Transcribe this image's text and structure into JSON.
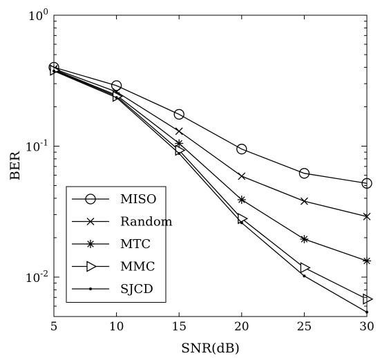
{
  "chart_data": {
    "type": "line",
    "xlabel": "SNR(dB)",
    "ylabel": "BER",
    "xlim": [
      5,
      30
    ],
    "ylim": [
      0.005,
      1
    ],
    "yscale": "log",
    "grid": false,
    "legend_position": "bottom-left",
    "x": [
      5,
      10,
      15,
      20,
      25,
      30
    ],
    "x_tick_labels": [
      "5",
      "10",
      "15",
      "20",
      "25",
      "30"
    ],
    "y_ticks": [
      {
        "value": 1,
        "base": "10",
        "exp": "0"
      },
      {
        "value": 0.1,
        "base": "10",
        "exp": "-1"
      },
      {
        "value": 0.01,
        "base": "10",
        "exp": "-2"
      }
    ],
    "series": [
      {
        "name": "MISO",
        "marker": "circle",
        "values": [
          0.4,
          0.29,
          0.175,
          0.095,
          0.062,
          0.052
        ]
      },
      {
        "name": "Random",
        "marker": "x",
        "values": [
          0.39,
          0.26,
          0.13,
          0.059,
          0.038,
          0.029
        ]
      },
      {
        "name": "MTC",
        "marker": "star",
        "values": [
          0.385,
          0.245,
          0.105,
          0.039,
          0.0195,
          0.0133
        ]
      },
      {
        "name": "MMC",
        "marker": "triangle-right",
        "values": [
          0.38,
          0.24,
          0.093,
          0.028,
          0.0118,
          0.0068
        ]
      },
      {
        "name": "SJCD",
        "marker": "dot",
        "values": [
          0.375,
          0.235,
          0.088,
          0.026,
          0.0102,
          0.0054
        ]
      }
    ]
  }
}
